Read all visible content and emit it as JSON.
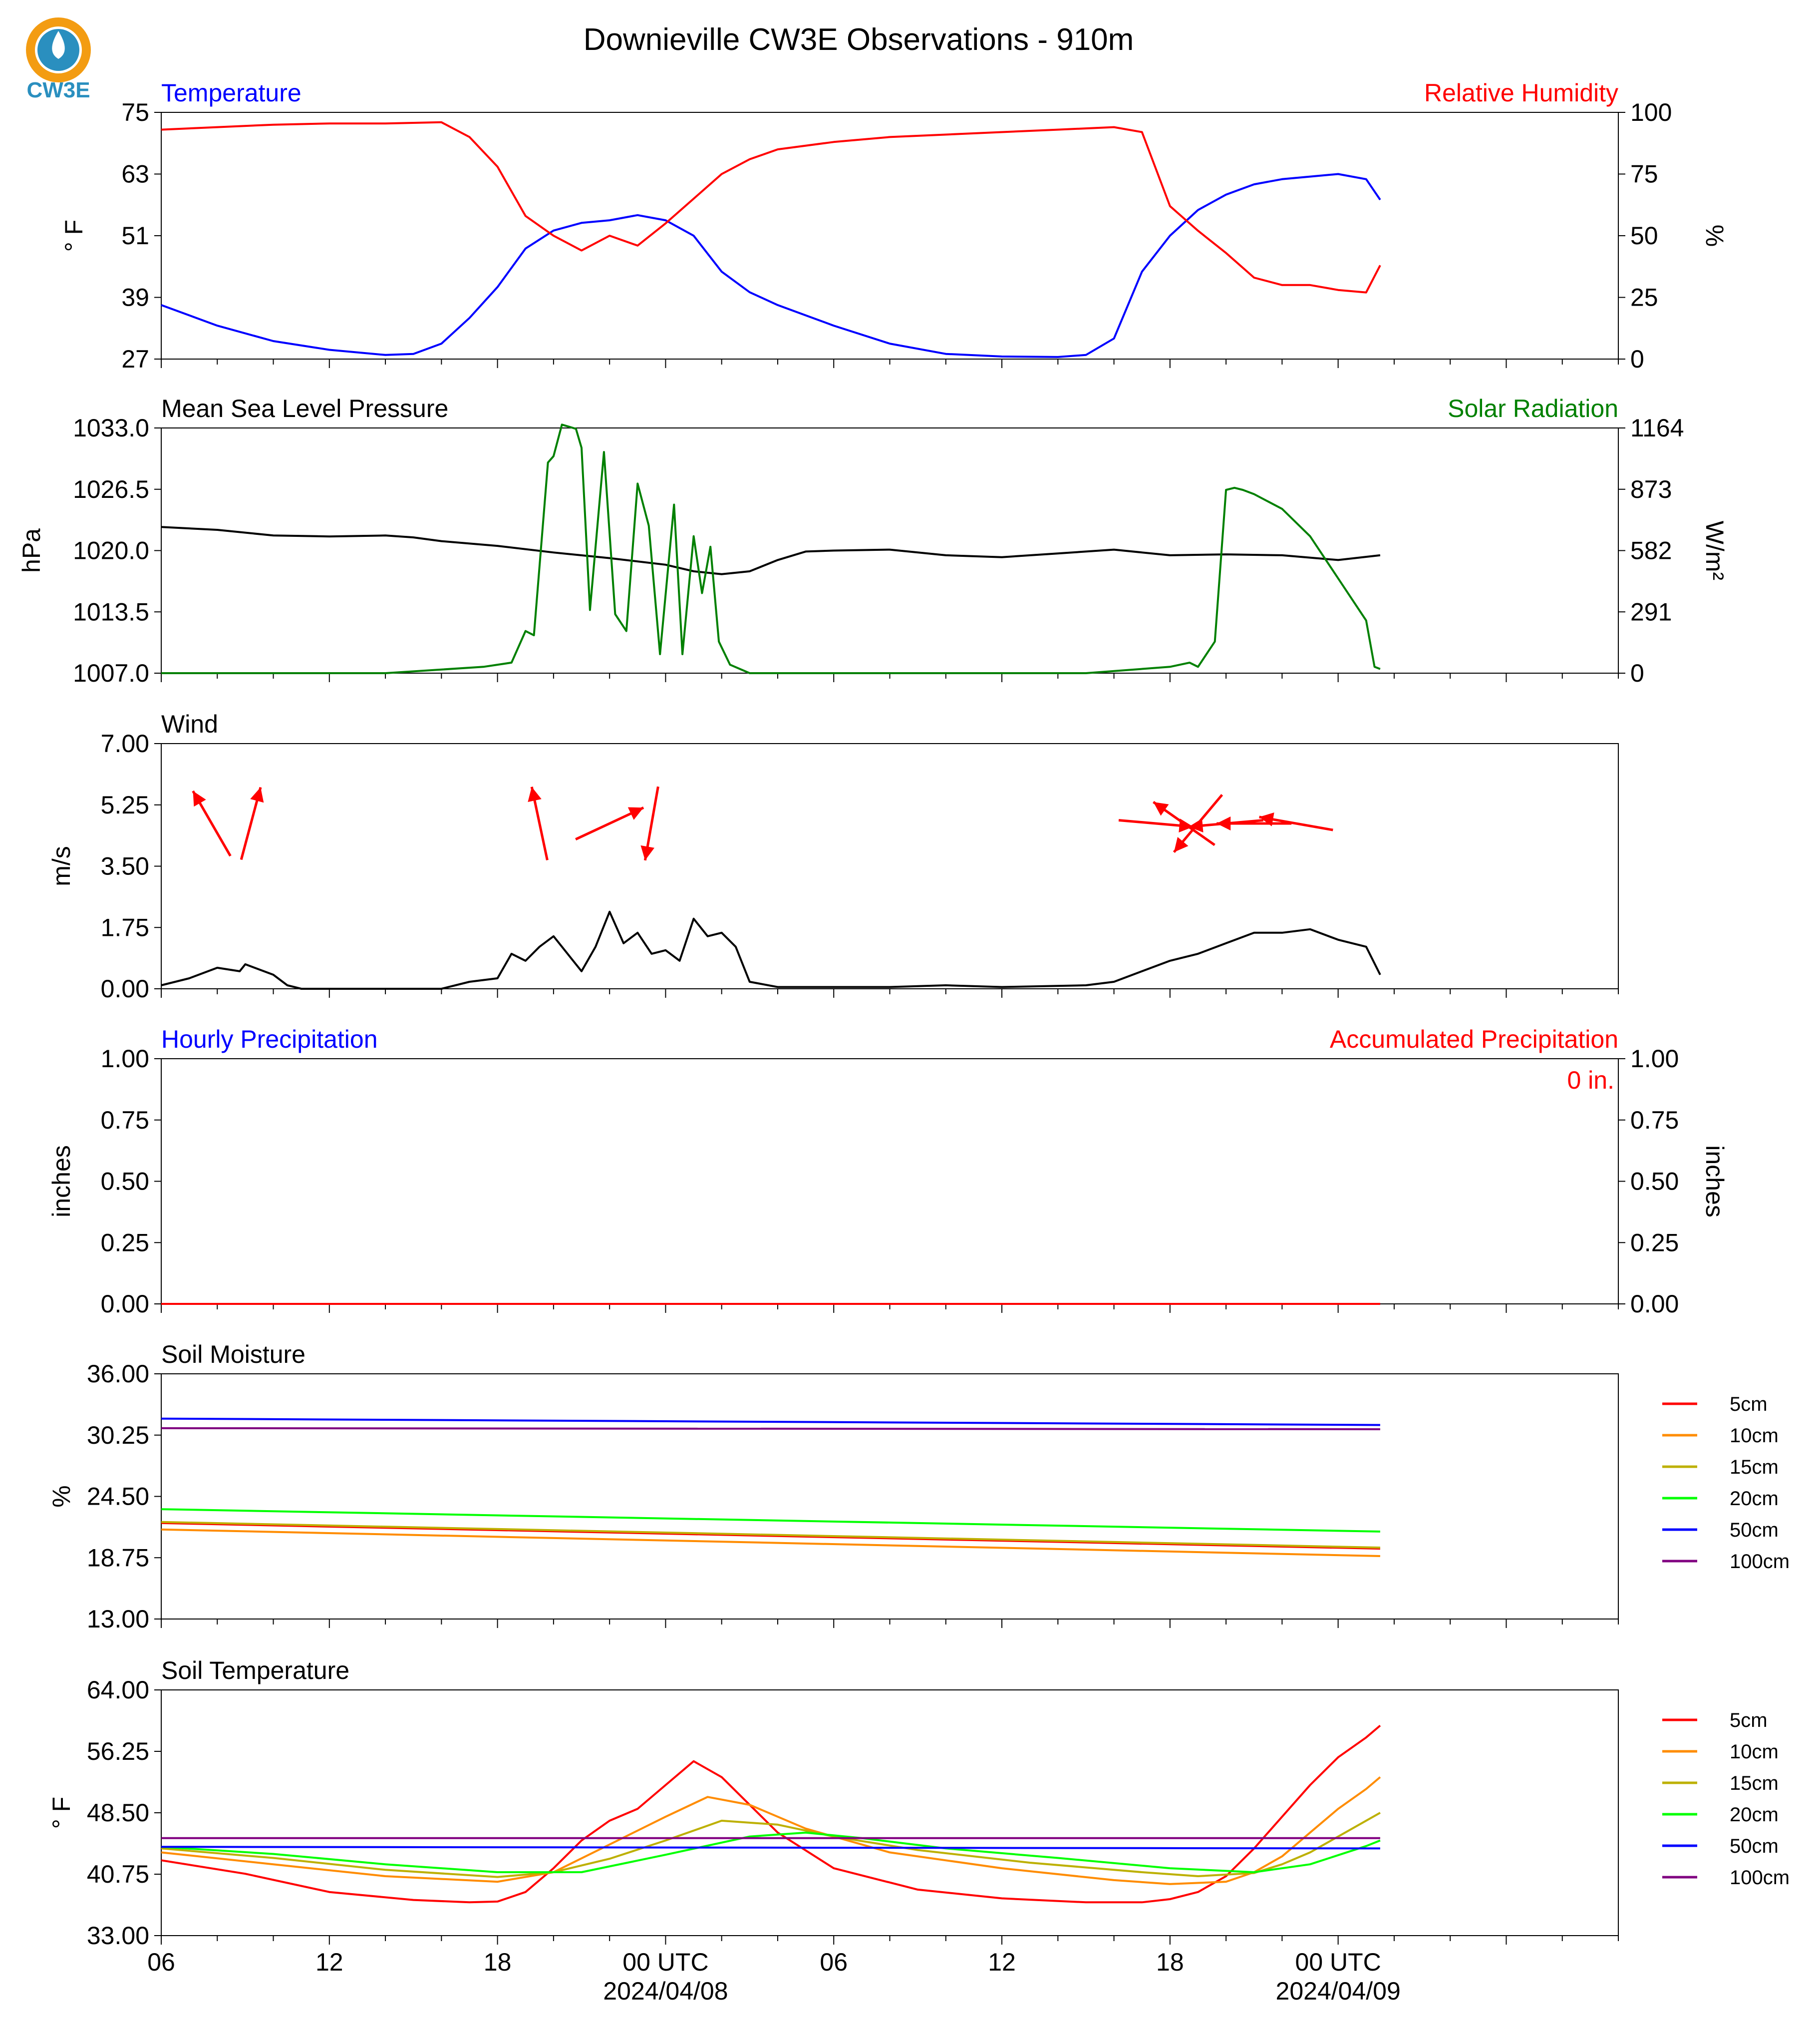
{
  "title": "Downieville CW3E Observations - 910m",
  "logo": {
    "text": "CW3E",
    "color": "#2a8fbf",
    "accent": "#f39c12"
  },
  "colors": {
    "temperature": "#0000ff",
    "humidity": "#ff0000",
    "pressure": "#000000",
    "solar": "#008000",
    "wind": "#000000",
    "wind_arrow": "#ff0000",
    "precip_hourly": "#0000ff",
    "precip_accum": "#ff0000"
  },
  "x_axis": {
    "range_hours": [
      0,
      52
    ],
    "major_ticks": [
      {
        "h": 0,
        "label": "06"
      },
      {
        "h": 6,
        "label": "12"
      },
      {
        "h": 12,
        "label": "18"
      },
      {
        "h": 18,
        "label": "00 UTC",
        "date": "2024/04/08"
      },
      {
        "h": 24,
        "label": "06"
      },
      {
        "h": 30,
        "label": "12"
      },
      {
        "h": 36,
        "label": "18"
      },
      {
        "h": 42,
        "label": "00 UTC",
        "date": "2024/04/09"
      }
    ]
  },
  "chart_data": [
    {
      "type": "line",
      "id": "temp_rh",
      "left_title": "Temperature",
      "right_title": "Relative Humidity",
      "ylabel": "° F",
      "ylabel_right": "%",
      "ylim": [
        27,
        75
      ],
      "ylim_right": [
        0,
        100
      ],
      "yticks": [
        "27",
        "39",
        "51",
        "63",
        "75"
      ],
      "yticks_right": [
        "0",
        "25",
        "50",
        "75",
        "100"
      ],
      "series": [
        {
          "name": "Temperature",
          "axis": "left",
          "color": "#0000ff",
          "x": [
            0,
            2,
            4,
            6,
            8,
            9,
            10,
            11,
            12,
            13,
            14,
            15,
            16,
            17,
            18,
            19,
            20,
            21,
            22,
            24,
            26,
            28,
            30,
            32,
            33,
            34,
            35,
            36,
            37,
            38,
            39,
            40,
            41,
            42,
            43,
            43.5
          ],
          "y": [
            37.5,
            33.5,
            30.5,
            28.8,
            27.8,
            28,
            30,
            35,
            41,
            48.5,
            52,
            53.5,
            54,
            55,
            54,
            51,
            44,
            40,
            37.5,
            33.5,
            30,
            28,
            27.5,
            27.4,
            27.8,
            31,
            44,
            51,
            56,
            59,
            61,
            62,
            62.5,
            63,
            62,
            58
          ]
        },
        {
          "name": "Relative Humidity",
          "axis": "right",
          "color": "#ff0000",
          "x": [
            0,
            2,
            4,
            6,
            8,
            10,
            11,
            12,
            13,
            14,
            15,
            16,
            17,
            18,
            19,
            20,
            21,
            22,
            24,
            26,
            28,
            30,
            32,
            34,
            35,
            36,
            37,
            38,
            39,
            40,
            41,
            42,
            43,
            43.5
          ],
          "y": [
            93,
            94,
            95,
            95.5,
            95.5,
            96,
            90,
            78,
            58,
            50,
            44,
            50,
            46,
            55,
            65,
            75,
            81,
            85,
            88,
            90,
            91,
            92,
            93,
            94,
            92,
            62,
            52,
            43,
            33,
            30,
            30,
            28,
            27,
            38
          ]
        }
      ]
    },
    {
      "type": "line",
      "id": "pressure_solar",
      "left_title": "Mean Sea Level Pressure",
      "right_title": "Solar Radiation",
      "ylabel": "hPa",
      "ylabel_right": "W/m²",
      "ylim": [
        1007,
        1033
      ],
      "ylim_right": [
        0,
        1164
      ],
      "yticks": [
        "1007.0",
        "1013.5",
        "1020.0",
        "1026.5",
        "1033.0"
      ],
      "yticks_right": [
        "0",
        "291",
        "582",
        "873",
        "1164"
      ],
      "series": [
        {
          "name": "Mean Sea Level Pressure",
          "axis": "left",
          "color": "#000000",
          "x": [
            0,
            2,
            4,
            6,
            8,
            9,
            10,
            12,
            14,
            16,
            18,
            19,
            20,
            21,
            22,
            23,
            24,
            26,
            28,
            30,
            32,
            34,
            36,
            38,
            40,
            42,
            43.5
          ],
          "y": [
            1022.5,
            1022.2,
            1021.6,
            1021.5,
            1021.6,
            1021.4,
            1021.0,
            1020.5,
            1019.8,
            1019.2,
            1018.5,
            1017.8,
            1017.5,
            1017.8,
            1019.0,
            1019.9,
            1020.0,
            1020.1,
            1019.5,
            1019.3,
            1019.7,
            1020.1,
            1019.5,
            1019.6,
            1019.5,
            1019.0,
            1019.5
          ]
        },
        {
          "name": "Solar Radiation",
          "axis": "right",
          "color": "#008000",
          "x": [
            0,
            5,
            8,
            11.5,
            12.5,
            13,
            13.3,
            13.8,
            14,
            14.3,
            14.8,
            15,
            15.3,
            15.8,
            16.2,
            16.6,
            17,
            17.4,
            17.8,
            18.3,
            18.6,
            19.0,
            19.3,
            19.6,
            19.9,
            20.3,
            21,
            28,
            33,
            36,
            36.7,
            37,
            37.6,
            38.0,
            38.3,
            38.6,
            39,
            40,
            41,
            42,
            43,
            43.3,
            43.5
          ],
          "y": [
            0,
            0,
            0,
            30,
            50,
            200,
            180,
            1000,
            1030,
            1180,
            1160,
            1070,
            300,
            1050,
            280,
            200,
            900,
            700,
            90,
            800,
            90,
            650,
            380,
            600,
            150,
            40,
            0,
            0,
            0,
            30,
            50,
            30,
            150,
            870,
            880,
            870,
            850,
            780,
            650,
            450,
            250,
            30,
            20
          ]
        }
      ]
    },
    {
      "type": "line",
      "id": "wind",
      "left_title": "Wind",
      "ylabel": "m/s",
      "ylim": [
        0,
        7
      ],
      "yticks": [
        "0.00",
        "1.75",
        "3.50",
        "5.25",
        "7.00"
      ],
      "series": [
        {
          "name": "Wind",
          "axis": "left",
          "color": "#000000",
          "x": [
            0,
            1,
            2,
            2.8,
            3,
            4,
            4.5,
            5,
            8,
            10,
            11,
            12,
            12.5,
            13,
            13.5,
            14,
            14.5,
            15,
            15.5,
            16,
            16.5,
            17,
            17.5,
            18,
            18.5,
            19,
            19.5,
            20,
            20.5,
            21,
            22,
            24,
            26,
            28,
            30,
            33,
            34,
            35,
            36,
            37,
            38,
            39,
            40,
            41,
            42,
            43,
            43.5
          ],
          "y": [
            0.1,
            0.3,
            0.6,
            0.5,
            0.7,
            0.4,
            0.1,
            0,
            0,
            0,
            0.2,
            0.3,
            1.0,
            0.8,
            1.2,
            1.5,
            1.0,
            0.5,
            1.2,
            2.2,
            1.3,
            1.6,
            1.0,
            1.1,
            0.8,
            2.0,
            1.5,
            1.6,
            1.2,
            0.2,
            0.05,
            0.05,
            0.05,
            0.1,
            0.05,
            0.1,
            0.2,
            0.5,
            0.8,
            1.0,
            1.3,
            1.6,
            1.6,
            1.7,
            1.4,
            1.2,
            0.4
          ]
        }
      ],
      "arrows": [
        {
          "h": 1.8,
          "dir": -30
        },
        {
          "h": 3.2,
          "dir": 15
        },
        {
          "h": 13.5,
          "dir": -12
        },
        {
          "h": 16.0,
          "dir": 65
        },
        {
          "h": 17.5,
          "dir": 190
        },
        {
          "h": 35.5,
          "dir": 95
        },
        {
          "h": 36.5,
          "dir": -55
        },
        {
          "h": 37.0,
          "dir": 220
        },
        {
          "h": 38.0,
          "dir": 265
        },
        {
          "h": 39.0,
          "dir": 270
        },
        {
          "h": 40.5,
          "dir": 280
        }
      ]
    },
    {
      "type": "line",
      "id": "precip",
      "left_title": "Hourly Precipitation",
      "right_title": "Accumulated Precipitation",
      "annotation": "0 in.",
      "ylabel": "inches",
      "ylabel_right": "inches",
      "ylim": [
        0,
        1
      ],
      "yticks": [
        "0.00",
        "0.25",
        "0.50",
        "0.75",
        "1.00"
      ],
      "yticks_right": [
        "0.00",
        "0.25",
        "0.50",
        "0.75",
        "1.00"
      ],
      "series": [
        {
          "name": "Hourly Precipitation",
          "axis": "left",
          "color": "#0000ff",
          "x": [
            0,
            43.5
          ],
          "y": [
            0,
            0
          ]
        },
        {
          "name": "Accumulated Precipitation",
          "axis": "left",
          "color": "#ff0000",
          "x": [
            0,
            43.5
          ],
          "y": [
            0,
            0
          ]
        }
      ]
    },
    {
      "type": "line",
      "id": "soil_moisture",
      "left_title": "Soil Moisture",
      "ylabel": "%",
      "ylim": [
        13,
        36
      ],
      "yticks": [
        "13.00",
        "18.75",
        "24.50",
        "30.25",
        "36.00"
      ],
      "series": [
        {
          "name": "5cm",
          "color": "#ff0000",
          "x": [
            0,
            43.5
          ],
          "y": [
            22.0,
            19.6
          ]
        },
        {
          "name": "10cm",
          "color": "#ff8c00",
          "x": [
            0,
            43.5
          ],
          "y": [
            21.4,
            18.9
          ]
        },
        {
          "name": "15cm",
          "color": "#bdb000",
          "x": [
            0,
            43.5
          ],
          "y": [
            22.1,
            19.7
          ]
        },
        {
          "name": "20cm",
          "color": "#00ff00",
          "x": [
            0,
            43.5
          ],
          "y": [
            23.3,
            21.2
          ]
        },
        {
          "name": "50cm",
          "color": "#0000ff",
          "x": [
            0,
            43.5
          ],
          "y": [
            31.8,
            31.2
          ]
        },
        {
          "name": "100cm",
          "color": "#800080",
          "x": [
            0,
            43.5
          ],
          "y": [
            30.9,
            30.8
          ]
        }
      ]
    },
    {
      "type": "line",
      "id": "soil_temp",
      "left_title": "Soil Temperature",
      "ylabel": "° F",
      "ylim": [
        33,
        64
      ],
      "yticks": [
        "33.00",
        "40.75",
        "48.50",
        "56.25",
        "64.00"
      ],
      "series": [
        {
          "name": "5cm",
          "color": "#ff0000",
          "x": [
            0,
            3,
            6,
            9,
            11,
            12,
            13,
            14,
            15,
            16,
            17,
            18,
            19,
            20,
            21,
            22,
            24,
            27,
            30,
            33,
            35,
            36,
            37,
            38,
            39,
            40,
            41,
            42,
            43,
            43.5
          ],
          "y": [
            42.5,
            40.8,
            38.5,
            37.5,
            37.2,
            37.3,
            38.5,
            41.5,
            45,
            47.5,
            49,
            52,
            55,
            53,
            49.5,
            46,
            41.5,
            38.8,
            37.7,
            37.2,
            37.2,
            37.6,
            38.5,
            40.5,
            44,
            48,
            52,
            55.5,
            58,
            59.5
          ]
        },
        {
          "name": "10cm",
          "color": "#ff8c00",
          "x": [
            0,
            4,
            8,
            12,
            14,
            16,
            18,
            19.5,
            21,
            23,
            26,
            30,
            34,
            36,
            38,
            39,
            40,
            41,
            42,
            43,
            43.5
          ],
          "y": [
            43.5,
            42,
            40.5,
            39.8,
            41,
            44.5,
            48,
            50.5,
            49.5,
            46.5,
            43.5,
            41.5,
            40,
            39.5,
            39.8,
            41,
            43,
            46,
            49,
            51.5,
            53
          ]
        },
        {
          "name": "15cm",
          "color": "#bdb000",
          "x": [
            0,
            4,
            8,
            12,
            14,
            16,
            18,
            20,
            22,
            24,
            27,
            31,
            35,
            37,
            39,
            40,
            41,
            42,
            43,
            43.5
          ],
          "y": [
            44,
            42.8,
            41.3,
            40.4,
            41,
            42.7,
            45,
            47.5,
            47,
            45.5,
            43.8,
            42.2,
            41,
            40.5,
            40.9,
            42,
            43.5,
            45.5,
            47.5,
            48.5
          ]
        },
        {
          "name": "20cm",
          "color": "#00ff00",
          "x": [
            0,
            4,
            8,
            12,
            15,
            18,
            21,
            23,
            25,
            28,
            32,
            36,
            39,
            41,
            43,
            43.5
          ],
          "y": [
            44.2,
            43.3,
            42,
            41,
            41,
            43.2,
            45.5,
            46,
            45.3,
            44,
            42.8,
            41.5,
            41,
            42,
            44.3,
            45
          ]
        },
        {
          "name": "50cm",
          "color": "#0000ff",
          "x": [
            0,
            43.5
          ],
          "y": [
            44.2,
            44.0
          ]
        },
        {
          "name": "100cm",
          "color": "#800080",
          "x": [
            0,
            43.5
          ],
          "y": [
            45.3,
            45.3
          ]
        }
      ],
      "legend": [
        "5cm",
        "10cm",
        "15cm",
        "20cm",
        "50cm",
        "100cm"
      ]
    }
  ]
}
